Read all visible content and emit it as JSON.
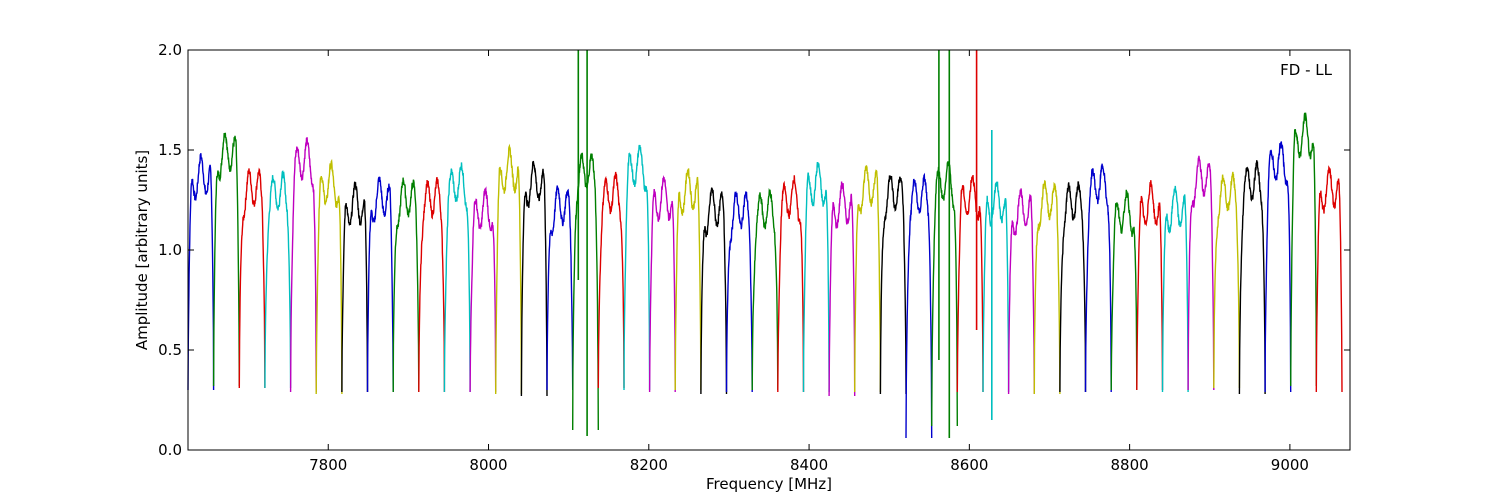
{
  "chart_data": {
    "type": "line",
    "title": "",
    "annotation": "FD - LL",
    "xlabel": "Frequency [MHz]",
    "ylabel": "Amplitude [arbitrary units]",
    "xlim": [
      7625,
      9075
    ],
    "ylim": [
      0,
      2.0
    ],
    "x_ticks": [
      7800,
      8000,
      8200,
      8400,
      8600,
      8800,
      9000
    ],
    "y_ticks": [
      0.0,
      0.5,
      1.0,
      1.5,
      2.0
    ],
    "y_tick_labels": [
      "0.0",
      "0.5",
      "1.0",
      "1.5",
      "2.0"
    ],
    "grid": false,
    "legend": "none",
    "color_cycle": [
      "#0000cc",
      "#007f00",
      "#dd0000",
      "#00bfbf",
      "#bf00bf",
      "#bfbf00",
      "#000000"
    ],
    "band_start_mhz": 7625,
    "band_width_mhz": 32,
    "band_count": 45,
    "band_peaks": [
      1.38,
      1.5,
      1.32,
      1.3,
      1.46,
      1.34,
      1.24,
      1.27,
      1.27,
      1.27,
      1.34,
      1.21,
      1.41,
      1.35,
      1.23,
      1.4,
      1.29,
      1.43,
      1.27,
      1.31,
      1.22,
      1.21,
      1.21,
      1.27,
      1.34,
      1.24,
      1.33,
      1.3,
      1.28,
      1.35,
      1.28,
      1.25,
      1.21,
      1.26,
      1.25,
      1.34,
      1.2,
      1.24,
      1.22,
      1.37,
      1.3,
      1.35,
      1.45,
      1.58,
      1.32
    ],
    "band_troughs": [
      0.3,
      0.32,
      0.31,
      0.31,
      0.29,
      0.28,
      0.29,
      0.29,
      0.29,
      0.29,
      0.29,
      0.29,
      0.28,
      0.27,
      0.3,
      0.1,
      0.31,
      0.3,
      0.29,
      0.3,
      0.28,
      0.29,
      0.3,
      0.29,
      0.29,
      0.27,
      0.29,
      0.28,
      0.06,
      0.12,
      0.29,
      0.29,
      0.28,
      0.28,
      0.29,
      0.29,
      0.3,
      0.3,
      0.29,
      0.3,
      0.31,
      0.28,
      0.29,
      0.32,
      0.29
    ],
    "spikes": [
      {
        "x": 8112,
        "y_min": 0.85,
        "y_max": 2.0
      },
      {
        "x": 8123,
        "y_min": 0.07,
        "y_max": 2.0
      },
      {
        "x": 8562,
        "y_min": 0.45,
        "y_max": 2.0
      },
      {
        "x": 8575,
        "y_min": 0.06,
        "y_max": 2.0
      },
      {
        "x": 8609,
        "y_min": 0.6,
        "y_max": 2.0
      },
      {
        "x": 8628,
        "y_min": 0.15,
        "y_max": 1.6
      }
    ]
  }
}
